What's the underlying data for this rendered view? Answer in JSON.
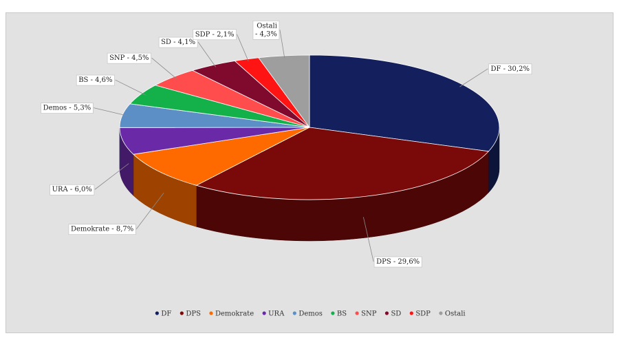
{
  "chart_data": {
    "type": "pie",
    "title": "",
    "slices": [
      {
        "name": "DF",
        "value": 30.2,
        "label": "DF - 30,2%",
        "color": "#14205e"
      },
      {
        "name": "DPS",
        "value": 29.6,
        "label": "DPS - 29,6%",
        "color": "#7a0a0a"
      },
      {
        "name": "Demokrate",
        "value": 8.7,
        "label": "Demokrate - 8,7%",
        "color": "#ff6a00"
      },
      {
        "name": "URA",
        "value": 6.0,
        "label": "URA - 6,0%",
        "color": "#6a2aa8"
      },
      {
        "name": "Demos",
        "value": 5.3,
        "label": "Demos - 5,3%",
        "color": "#5b8fc6"
      },
      {
        "name": "BS",
        "value": 4.6,
        "label": "BS - 4,6%",
        "color": "#14b14a"
      },
      {
        "name": "SNP",
        "value": 4.5,
        "label": "SNP - 4,5%",
        "color": "#ff4d4d"
      },
      {
        "name": "SD",
        "value": 4.1,
        "label": "SD - 4,1%",
        "color": "#7f0a2e"
      },
      {
        "name": "SDP",
        "value": 2.1,
        "label": "SDP - 2,1%",
        "color": "#ff1414"
      },
      {
        "name": "Ostali",
        "value": 4.3,
        "label": "Ostali - 4,3%",
        "color": "#9e9e9e"
      }
    ],
    "legend_position": "bottom",
    "style": "3d"
  }
}
